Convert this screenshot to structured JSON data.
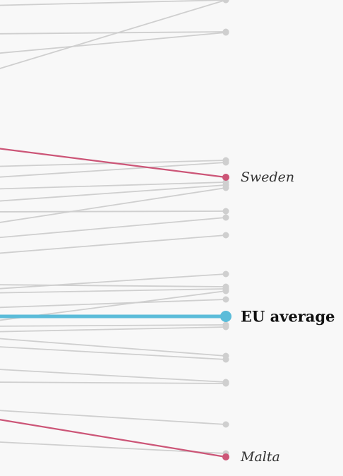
{
  "chart_data": {
    "type": "line",
    "title": "",
    "xlabel": "",
    "ylabel": "",
    "ylim": [
      0,
      674
    ],
    "colors": {
      "background": "#f8f8f8",
      "other_countries": "#cfcfcf",
      "highlight": "#cc5577",
      "eu_average": "#5bbcd9"
    },
    "series": [
      {
        "name": "Sweden",
        "role": "highlight",
        "start": 208,
        "end": 251
      },
      {
        "name": "EU average",
        "role": "average",
        "start": 448,
        "end": 448
      },
      {
        "name": "Malta",
        "role": "highlight",
        "start": 591,
        "end": 647
      },
      {
        "role": "other",
        "start": 8,
        "end": 0
      },
      {
        "role": "other",
        "start": 48,
        "end": 45
      },
      {
        "role": "other",
        "start": 77,
        "end": 46
      },
      {
        "role": "other",
        "start": 103,
        "end": 0
      },
      {
        "role": "other",
        "start": 236,
        "end": 227
      },
      {
        "role": "other",
        "start": 252,
        "end": 230
      },
      {
        "role": "other",
        "start": 268,
        "end": 258
      },
      {
        "role": "other",
        "start": 286,
        "end": 262
      },
      {
        "role": "other",
        "start": 300,
        "end": 299
      },
      {
        "role": "other",
        "start": 318,
        "end": 266
      },
      {
        "role": "other",
        "start": 338,
        "end": 308
      },
      {
        "role": "other",
        "start": 360,
        "end": 333
      },
      {
        "role": "other",
        "start": 410,
        "end": 388
      },
      {
        "role": "other",
        "start": 403,
        "end": 406
      },
      {
        "role": "other",
        "start": 415,
        "end": 409
      },
      {
        "role": "other",
        "start": 436,
        "end": 424
      },
      {
        "role": "other",
        "start": 456,
        "end": 412
      },
      {
        "role": "other",
        "start": 462,
        "end": 460
      },
      {
        "role": "other",
        "start": 470,
        "end": 463
      },
      {
        "role": "other",
        "start": 478,
        "end": 504
      },
      {
        "role": "other",
        "start": 490,
        "end": 509
      },
      {
        "role": "other",
        "start": 522,
        "end": 541
      },
      {
        "role": "other",
        "start": 541,
        "end": 543
      },
      {
        "role": "other",
        "start": 580,
        "end": 601
      },
      {
        "role": "other",
        "start": 625,
        "end": 642
      }
    ]
  }
}
